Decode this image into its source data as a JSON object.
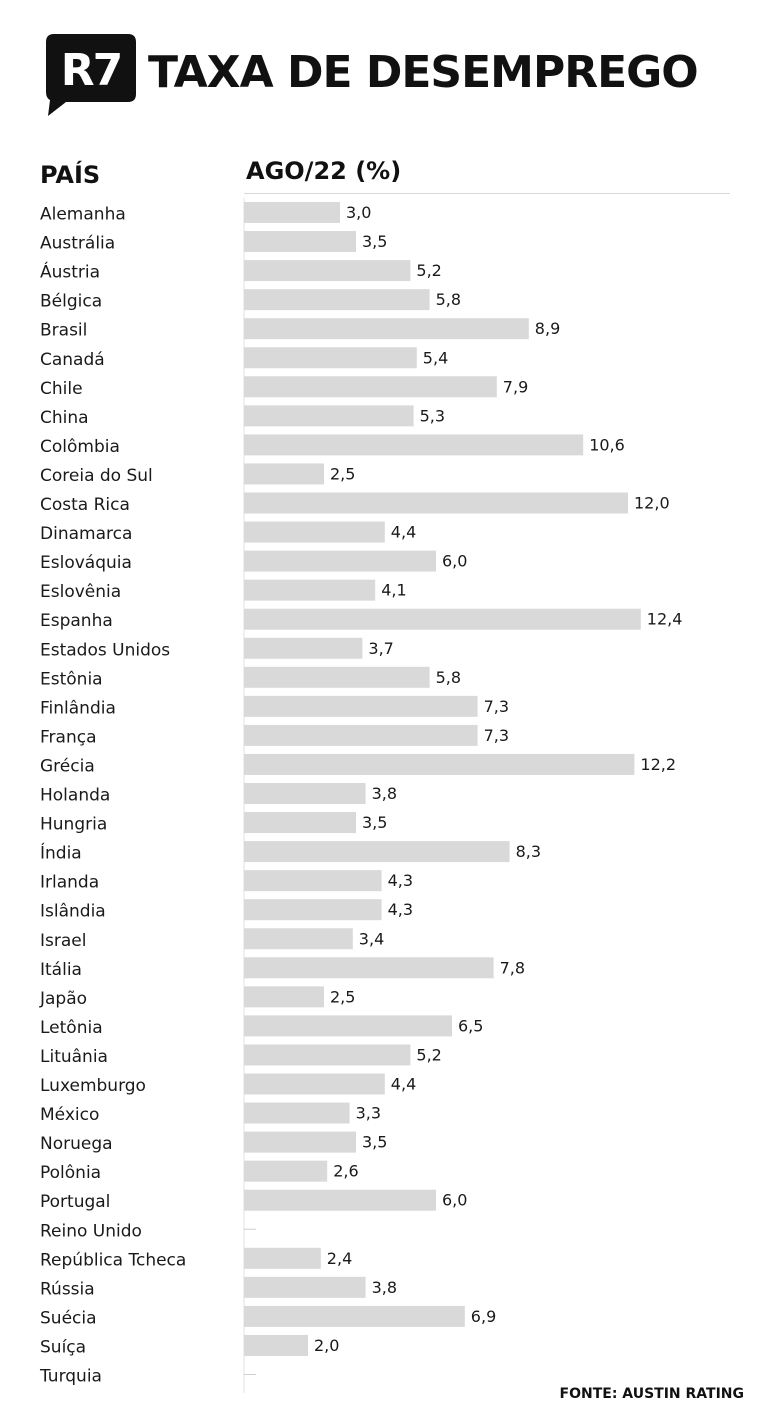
{
  "title": "TAXA DE DESEMPREGO",
  "logo_text": "R7",
  "source": "FONTE: AUSTIN RATING",
  "colors": {
    "bar": "#d9d9d9",
    "text": "#1a1a1a",
    "logo_bg": "#111111",
    "logo_text": "#ffffff"
  },
  "chart_data": {
    "type": "bar",
    "orientation": "horizontal",
    "category_header": "PAÍS",
    "value_header": "AGO/22 (%)",
    "categories": [
      "Alemanha",
      "Austrália",
      "Áustria",
      "Bélgica",
      "Brasil",
      "Canadá",
      "Chile",
      "China",
      "Colômbia",
      "Coreia do Sul",
      "Costa Rica",
      "Dinamarca",
      "Eslováquia",
      "Eslovênia",
      "Espanha",
      "Estados Unidos",
      "Estônia",
      "Finlândia",
      "França",
      "Grécia",
      "Holanda",
      "Hungria",
      "Índia",
      "Irlanda",
      "Islândia",
      "Israel",
      "Itália",
      "Japão",
      "Letônia",
      "Lituânia",
      "Luxemburgo",
      "México",
      "Noruega",
      "Polônia",
      "Portugal",
      "Reino Unido",
      "República Tcheca",
      "Rússia",
      "Suécia",
      "Suíça",
      "Turquia"
    ],
    "values": [
      3.0,
      3.5,
      5.2,
      5.8,
      8.9,
      5.4,
      7.9,
      5.3,
      10.6,
      2.5,
      12.0,
      4.4,
      6.0,
      4.1,
      12.4,
      3.7,
      5.8,
      7.3,
      7.3,
      12.2,
      3.8,
      3.5,
      8.3,
      4.3,
      4.3,
      3.4,
      7.8,
      2.5,
      6.5,
      5.2,
      4.4,
      3.3,
      3.5,
      2.6,
      6.0,
      null,
      2.4,
      3.8,
      6.9,
      2.0,
      null
    ],
    "value_labels": [
      "3,0",
      "3,5",
      "5,2",
      "5,8",
      "8,9",
      "5,4",
      "7,9",
      "5,3",
      "10,6",
      "2,5",
      "12,0",
      "4,4",
      "6,0",
      "4,1",
      "12,4",
      "3,7",
      "5,8",
      "7,3",
      "7,3",
      "12,2",
      "3,8",
      "3,5",
      "8,3",
      "4,3",
      "4,3",
      "3,4",
      "7,8",
      "2,5",
      "6,5",
      "5,2",
      "4,4",
      "3,3",
      "3,5",
      "2,6",
      "6,0",
      "",
      "2,4",
      "3,8",
      "6,9",
      "2,0",
      ""
    ],
    "xlim": [
      0,
      12.4
    ],
    "grid": false,
    "legend": "none"
  }
}
